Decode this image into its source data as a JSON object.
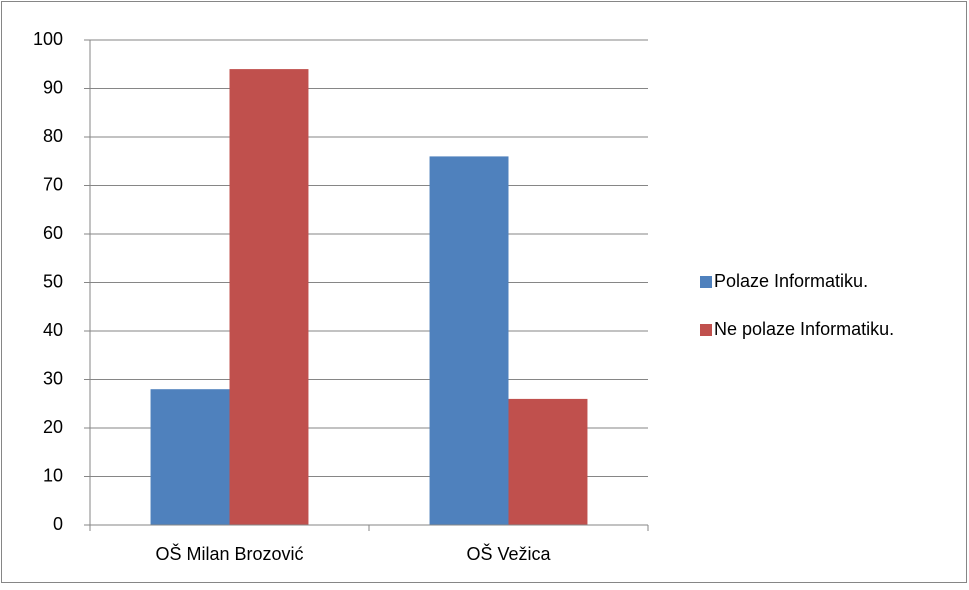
{
  "chart_data": {
    "type": "bar",
    "categories": [
      "OŠ Milan Brozović",
      "OŠ Vežica"
    ],
    "series": [
      {
        "name": "Polaze Informatiku.",
        "color": "#4f81bd",
        "values": [
          28,
          76
        ]
      },
      {
        "name": "Ne polaze Informatiku.",
        "color": "#c0504d",
        "values": [
          94,
          26
        ]
      }
    ],
    "ylim": [
      0,
      100
    ],
    "yticks": [
      0,
      10,
      20,
      30,
      40,
      50,
      60,
      70,
      80,
      90,
      100
    ],
    "grid": true,
    "legend": "right"
  }
}
